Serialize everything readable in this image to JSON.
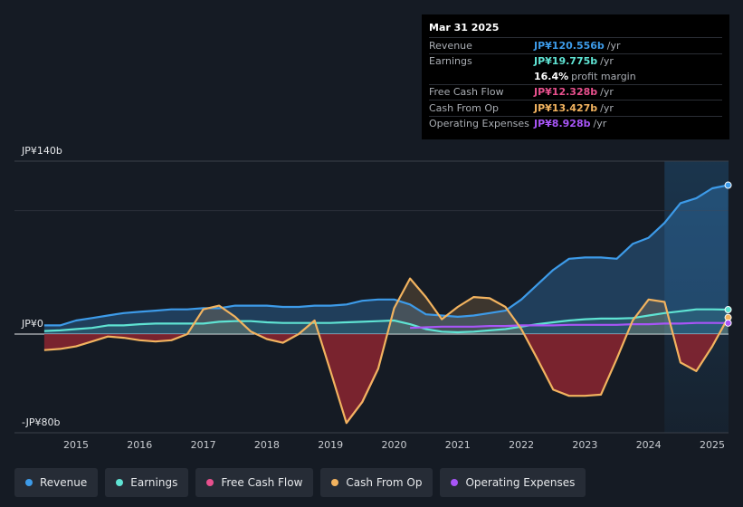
{
  "tooltip": {
    "date": "Mar 31 2025",
    "rows": [
      {
        "label": "Revenue",
        "value": "JP¥120.556b",
        "unit": "/yr",
        "color": "#3d9be9"
      },
      {
        "label": "Earnings",
        "value": "JP¥19.775b",
        "unit": "/yr",
        "color": "#5fe3d3"
      },
      {
        "label": "",
        "value": "16.4%",
        "unit": "profit margin",
        "color": "#ffffff"
      },
      {
        "label": "Free Cash Flow",
        "value": "JP¥12.328b",
        "unit": "/yr",
        "color": "#e8508d"
      },
      {
        "label": "Cash From Op",
        "value": "JP¥13.427b",
        "unit": "/yr",
        "color": "#f2b35f"
      },
      {
        "label": "Operating Expenses",
        "value": "JP¥8.928b",
        "unit": "/yr",
        "color": "#a855f7"
      }
    ]
  },
  "legend": [
    {
      "label": "Revenue",
      "color": "#3d9be9"
    },
    {
      "label": "Earnings",
      "color": "#5fe3d3"
    },
    {
      "label": "Free Cash Flow",
      "color": "#e8508d"
    },
    {
      "label": "Cash From Op",
      "color": "#f2b35f"
    },
    {
      "label": "Operating Expenses",
      "color": "#a855f7"
    }
  ],
  "chart_data": {
    "type": "area",
    "title": "",
    "xlabel": "",
    "ylabel": "",
    "currency": "JP¥",
    "ylim": [
      -80,
      140
    ],
    "y_tick_labels": [
      "JP¥140b",
      "JP¥0",
      "-JP¥80b"
    ],
    "y_tick_values": [
      140,
      0,
      -80
    ],
    "xlim": [
      2014.5,
      2025.25
    ],
    "x_tick_labels": [
      "2015",
      "2016",
      "2017",
      "2018",
      "2019",
      "2020",
      "2021",
      "2022",
      "2023",
      "2024",
      "2025"
    ],
    "x_tick_values": [
      2015,
      2016,
      2017,
      2018,
      2019,
      2020,
      2021,
      2022,
      2023,
      2024,
      2025
    ],
    "forecast_highlight_start": 2024.25,
    "series": [
      {
        "name": "Revenue",
        "color": "#3d9be9",
        "points": [
          [
            2014.5,
            7
          ],
          [
            2014.75,
            7
          ],
          [
            2015,
            11
          ],
          [
            2015.25,
            13
          ],
          [
            2015.5,
            15
          ],
          [
            2015.75,
            17
          ],
          [
            2016,
            18
          ],
          [
            2016.25,
            19
          ],
          [
            2016.5,
            20
          ],
          [
            2016.75,
            20
          ],
          [
            2017,
            21
          ],
          [
            2017.25,
            21
          ],
          [
            2017.5,
            23
          ],
          [
            2017.75,
            23
          ],
          [
            2018,
            23
          ],
          [
            2018.25,
            22
          ],
          [
            2018.5,
            22
          ],
          [
            2018.75,
            23
          ],
          [
            2019,
            23
          ],
          [
            2019.25,
            24
          ],
          [
            2019.5,
            27
          ],
          [
            2019.75,
            28
          ],
          [
            2020,
            28
          ],
          [
            2020.25,
            24
          ],
          [
            2020.5,
            16
          ],
          [
            2020.75,
            15
          ],
          [
            2021,
            14
          ],
          [
            2021.25,
            15
          ],
          [
            2021.5,
            17
          ],
          [
            2021.75,
            19
          ],
          [
            2022,
            28
          ],
          [
            2022.25,
            40
          ],
          [
            2022.5,
            52
          ],
          [
            2022.75,
            61
          ],
          [
            2023,
            62
          ],
          [
            2023.25,
            62
          ],
          [
            2023.5,
            61
          ],
          [
            2023.75,
            73
          ],
          [
            2024,
            78
          ],
          [
            2024.25,
            90
          ],
          [
            2024.5,
            106
          ],
          [
            2024.75,
            110
          ],
          [
            2025,
            118
          ],
          [
            2025.25,
            120.556
          ]
        ]
      },
      {
        "name": "Earnings",
        "color": "#5fe3d3",
        "points": [
          [
            2014.5,
            2.5
          ],
          [
            2014.75,
            3
          ],
          [
            2015,
            4
          ],
          [
            2015.25,
            5
          ],
          [
            2015.5,
            7
          ],
          [
            2015.75,
            7
          ],
          [
            2016,
            8
          ],
          [
            2016.25,
            8.5
          ],
          [
            2016.5,
            8.5
          ],
          [
            2016.75,
            8.5
          ],
          [
            2017,
            8.5
          ],
          [
            2017.25,
            10
          ],
          [
            2017.5,
            10.5
          ],
          [
            2017.75,
            10.5
          ],
          [
            2018,
            9.5
          ],
          [
            2018.25,
            9
          ],
          [
            2018.5,
            9
          ],
          [
            2018.75,
            9
          ],
          [
            2019,
            9
          ],
          [
            2019.25,
            9.5
          ],
          [
            2019.5,
            10
          ],
          [
            2019.75,
            10.5
          ],
          [
            2020,
            11
          ],
          [
            2020.25,
            8
          ],
          [
            2020.5,
            4
          ],
          [
            2020.75,
            2
          ],
          [
            2021,
            1.5
          ],
          [
            2021.25,
            2
          ],
          [
            2021.5,
            3
          ],
          [
            2021.75,
            4
          ],
          [
            2022,
            6
          ],
          [
            2022.25,
            8
          ],
          [
            2022.5,
            9.5
          ],
          [
            2022.75,
            11
          ],
          [
            2023,
            12
          ],
          [
            2023.25,
            12.5
          ],
          [
            2023.5,
            12.5
          ],
          [
            2023.75,
            13
          ],
          [
            2024,
            15
          ],
          [
            2024.25,
            17
          ],
          [
            2024.5,
            18.5
          ],
          [
            2024.75,
            20
          ],
          [
            2025,
            20
          ],
          [
            2025.25,
            19.775
          ]
        ]
      },
      {
        "name": "Free Cash Flow",
        "color": "#e8508d",
        "points": [
          [
            2019.25,
            -72
          ],
          [
            2019.5,
            -55
          ],
          [
            2019.75,
            -28
          ]
        ]
      },
      {
        "name": "Cash From Op",
        "color": "#f2b35f",
        "points": [
          [
            2014.5,
            -13
          ],
          [
            2014.75,
            -12
          ],
          [
            2015,
            -10
          ],
          [
            2015.25,
            -6
          ],
          [
            2015.5,
            -2
          ],
          [
            2015.75,
            -3
          ],
          [
            2016,
            -5
          ],
          [
            2016.25,
            -6
          ],
          [
            2016.5,
            -5
          ],
          [
            2016.75,
            0
          ],
          [
            2017,
            20
          ],
          [
            2017.25,
            23
          ],
          [
            2017.5,
            14
          ],
          [
            2017.75,
            2
          ],
          [
            2018,
            -4
          ],
          [
            2018.25,
            -7
          ],
          [
            2018.5,
            0
          ],
          [
            2018.75,
            11
          ],
          [
            2019,
            -30
          ],
          [
            2019.25,
            -72
          ],
          [
            2019.5,
            -55
          ],
          [
            2019.75,
            -28
          ],
          [
            2020,
            21
          ],
          [
            2020.25,
            45
          ],
          [
            2020.5,
            30
          ],
          [
            2020.75,
            12
          ],
          [
            2021,
            22
          ],
          [
            2021.25,
            30
          ],
          [
            2021.5,
            29
          ],
          [
            2021.75,
            22
          ],
          [
            2022,
            4
          ],
          [
            2022.25,
            -20
          ],
          [
            2022.5,
            -45
          ],
          [
            2022.75,
            -50
          ],
          [
            2023,
            -50
          ],
          [
            2023.25,
            -49
          ],
          [
            2023.5,
            -20
          ],
          [
            2023.75,
            11
          ],
          [
            2024,
            28
          ],
          [
            2024.25,
            26
          ],
          [
            2024.5,
            -23
          ],
          [
            2024.75,
            -30
          ],
          [
            2025,
            -10
          ],
          [
            2025.25,
            13.427
          ]
        ]
      },
      {
        "name": "Operating Expenses",
        "color": "#a855f7",
        "points": [
          [
            2020.25,
            5
          ],
          [
            2020.5,
            5.5
          ],
          [
            2020.75,
            6
          ],
          [
            2021,
            6
          ],
          [
            2021.25,
            6
          ],
          [
            2021.5,
            6.5
          ],
          [
            2021.75,
            6.5
          ],
          [
            2022,
            7
          ],
          [
            2022.25,
            7
          ],
          [
            2022.5,
            7
          ],
          [
            2022.75,
            7.5
          ],
          [
            2023,
            7.5
          ],
          [
            2023.25,
            7.5
          ],
          [
            2023.5,
            7.5
          ],
          [
            2023.75,
            8
          ],
          [
            2024,
            8
          ],
          [
            2024.25,
            8.5
          ],
          [
            2024.5,
            8.5
          ],
          [
            2024.75,
            9
          ],
          [
            2025,
            9
          ],
          [
            2025.25,
            8.928
          ]
        ]
      }
    ]
  }
}
